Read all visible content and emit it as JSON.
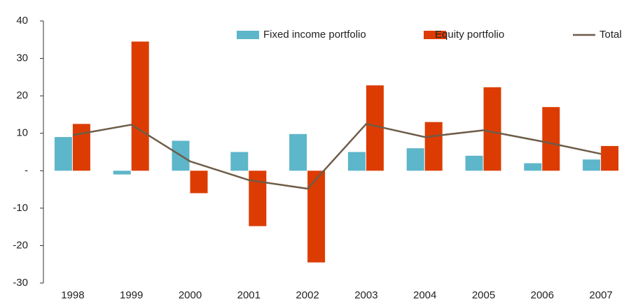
{
  "chart_data": {
    "type": "bar",
    "categories": [
      "1998",
      "1999",
      "2000",
      "2001",
      "2002",
      "2003",
      "2004",
      "2005",
      "2006",
      "2007"
    ],
    "series": [
      {
        "name": "Fixed income portfolio",
        "color": "#5db6c9",
        "type": "bar",
        "values": [
          9,
          -1,
          8,
          5,
          9.8,
          5,
          6,
          4,
          2,
          3
        ]
      },
      {
        "name": "Equity portfolio",
        "color": "#dc3c02",
        "type": "bar",
        "values": [
          12.5,
          34.5,
          -6,
          -14.8,
          -24.5,
          22.8,
          13,
          22.3,
          17,
          6.6
        ]
      },
      {
        "name": "Total",
        "color": "#6e5c48",
        "type": "line",
        "values": [
          9.5,
          12.3,
          2.5,
          -2.5,
          -4.8,
          12.5,
          9,
          10.8,
          7.8,
          4.5
        ]
      }
    ],
    "ylim": [
      -30,
      40
    ],
    "yticks": [
      -30,
      -20,
      -10,
      {
        "value": 0,
        "label": "-"
      },
      10,
      20,
      30,
      40
    ],
    "legend": "top-right"
  }
}
